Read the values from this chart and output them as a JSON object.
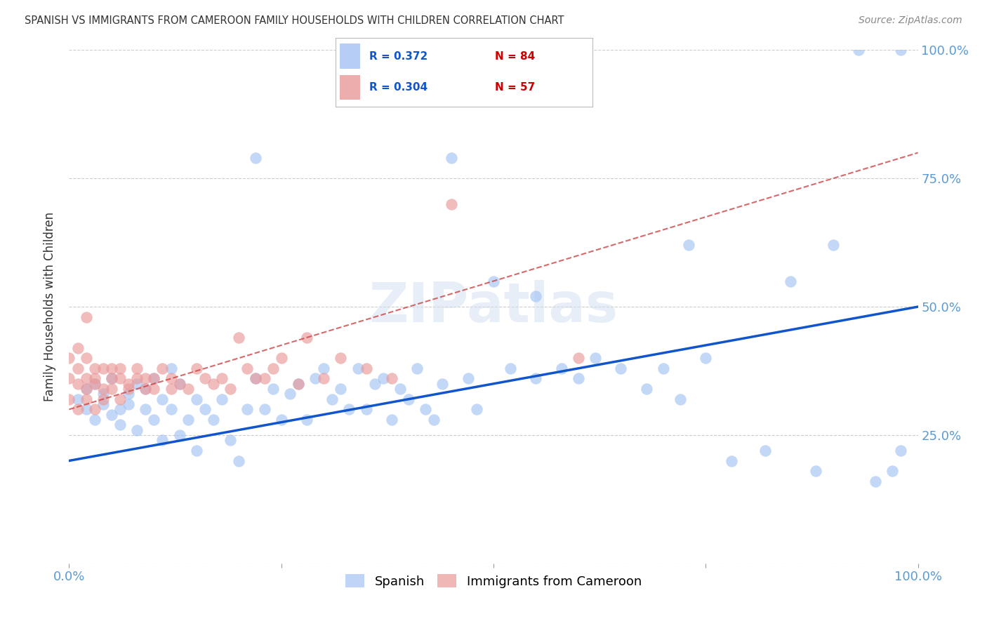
{
  "title": "SPANISH VS IMMIGRANTS FROM CAMEROON FAMILY HOUSEHOLDS WITH CHILDREN CORRELATION CHART",
  "source": "Source: ZipAtlas.com",
  "ylabel": "Family Households with Children",
  "xlim": [
    0.0,
    1.0
  ],
  "ylim": [
    0.0,
    1.0
  ],
  "xticks": [
    0.0,
    0.25,
    0.5,
    0.75,
    1.0
  ],
  "yticks": [
    0.0,
    0.25,
    0.5,
    0.75,
    1.0
  ],
  "spanish_color": "#a4c2f4",
  "cameroon_color": "#ea9999",
  "blue_line_color": "#1155cc",
  "pink_line_color": "#cc4444",
  "legend_R_spanish": "0.372",
  "legend_N_spanish": "84",
  "legend_R_cameroon": "0.304",
  "legend_N_cameroon": "57",
  "watermark": "ZIPatlas",
  "grid_color": "#cccccc",
  "background_color": "#ffffff",
  "blue_line_x0": 0.0,
  "blue_line_y0": 0.2,
  "blue_line_x1": 1.0,
  "blue_line_y1": 0.5,
  "pink_line_x0": 0.0,
  "pink_line_y0": 0.3,
  "pink_line_x1": 1.0,
  "pink_line_y1": 0.8,
  "spanish_x": [
    0.01,
    0.02,
    0.02,
    0.03,
    0.03,
    0.04,
    0.04,
    0.05,
    0.05,
    0.06,
    0.06,
    0.07,
    0.07,
    0.08,
    0.08,
    0.09,
    0.09,
    0.1,
    0.1,
    0.11,
    0.11,
    0.12,
    0.12,
    0.13,
    0.13,
    0.14,
    0.15,
    0.15,
    0.16,
    0.17,
    0.18,
    0.19,
    0.2,
    0.21,
    0.22,
    0.22,
    0.23,
    0.24,
    0.25,
    0.26,
    0.27,
    0.28,
    0.29,
    0.3,
    0.31,
    0.32,
    0.33,
    0.34,
    0.35,
    0.36,
    0.37,
    0.38,
    0.39,
    0.4,
    0.41,
    0.42,
    0.43,
    0.44,
    0.45,
    0.47,
    0.48,
    0.5,
    0.52,
    0.55,
    0.58,
    0.6,
    0.62,
    0.65,
    0.68,
    0.7,
    0.72,
    0.75,
    0.78,
    0.82,
    0.85,
    0.88,
    0.9,
    0.93,
    0.95,
    0.97,
    0.98,
    0.98,
    0.55,
    0.73
  ],
  "spanish_y": [
    0.32,
    0.3,
    0.34,
    0.28,
    0.35,
    0.31,
    0.33,
    0.29,
    0.36,
    0.3,
    0.27,
    0.33,
    0.31,
    0.35,
    0.26,
    0.3,
    0.34,
    0.28,
    0.36,
    0.32,
    0.24,
    0.3,
    0.38,
    0.25,
    0.35,
    0.28,
    0.22,
    0.32,
    0.3,
    0.28,
    0.32,
    0.24,
    0.2,
    0.3,
    0.79,
    0.36,
    0.3,
    0.34,
    0.28,
    0.33,
    0.35,
    0.28,
    0.36,
    0.38,
    0.32,
    0.34,
    0.3,
    0.38,
    0.3,
    0.35,
    0.36,
    0.28,
    0.34,
    0.32,
    0.38,
    0.3,
    0.28,
    0.35,
    0.79,
    0.36,
    0.3,
    0.55,
    0.38,
    0.36,
    0.38,
    0.36,
    0.4,
    0.38,
    0.34,
    0.38,
    0.32,
    0.4,
    0.2,
    0.22,
    0.55,
    0.18,
    0.62,
    1.0,
    0.16,
    0.18,
    1.0,
    0.22,
    0.52,
    0.62
  ],
  "cameroon_x": [
    0.0,
    0.0,
    0.0,
    0.01,
    0.01,
    0.01,
    0.01,
    0.02,
    0.02,
    0.02,
    0.02,
    0.03,
    0.03,
    0.03,
    0.03,
    0.04,
    0.04,
    0.04,
    0.05,
    0.05,
    0.05,
    0.06,
    0.06,
    0.06,
    0.07,
    0.07,
    0.08,
    0.08,
    0.09,
    0.09,
    0.1,
    0.1,
    0.11,
    0.12,
    0.12,
    0.13,
    0.14,
    0.15,
    0.16,
    0.17,
    0.18,
    0.19,
    0.2,
    0.21,
    0.22,
    0.23,
    0.24,
    0.25,
    0.27,
    0.28,
    0.3,
    0.32,
    0.35,
    0.38,
    0.45,
    0.6,
    0.02
  ],
  "cameroon_y": [
    0.36,
    0.32,
    0.4,
    0.35,
    0.3,
    0.38,
    0.42,
    0.34,
    0.36,
    0.32,
    0.4,
    0.35,
    0.38,
    0.3,
    0.36,
    0.34,
    0.38,
    0.32,
    0.36,
    0.38,
    0.34,
    0.36,
    0.32,
    0.38,
    0.35,
    0.34,
    0.36,
    0.38,
    0.34,
    0.36,
    0.36,
    0.34,
    0.38,
    0.36,
    0.34,
    0.35,
    0.34,
    0.38,
    0.36,
    0.35,
    0.36,
    0.34,
    0.44,
    0.38,
    0.36,
    0.36,
    0.38,
    0.4,
    0.35,
    0.44,
    0.36,
    0.4,
    0.38,
    0.36,
    0.7,
    0.4,
    0.48
  ]
}
